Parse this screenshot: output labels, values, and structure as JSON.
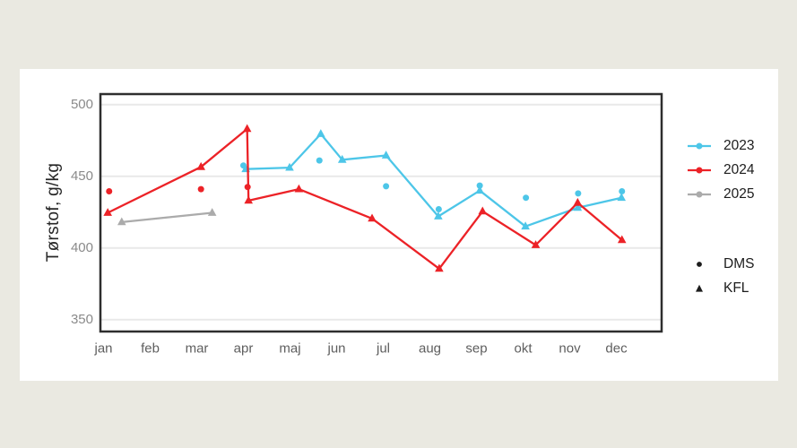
{
  "page": {
    "background_color": "#EAE9E1",
    "card_color": "#FFFFFF"
  },
  "chart_data": {
    "type": "line",
    "title": "",
    "ylabel": "Tørstof, g/kg",
    "ylim": [
      341,
      508
    ],
    "yticks": [
      350,
      400,
      450,
      500
    ],
    "ytick_labels": [
      "350",
      "400",
      "450",
      "500"
    ],
    "x_categories": [
      "jan",
      "feb",
      "mar",
      "apr",
      "maj",
      "jun",
      "jul",
      "aug",
      "sep",
      "okt",
      "nov",
      "dec"
    ],
    "x_unit": "month index, 0 = jan (fractional = within-month date)",
    "grid": "horizontal major gridlines only",
    "legend_position": "right",
    "panel_border": "#2E2E2E",
    "grid_color": "#E9E9E9",
    "series": [
      {
        "name": "2023",
        "color": "#4DC6E8",
        "kfl_points": [
          [
            3.05,
            455
          ],
          [
            3.99,
            456
          ],
          [
            4.66,
            479.5
          ],
          [
            5.12,
            461.5
          ],
          [
            6.06,
            464.5
          ],
          [
            7.18,
            422
          ],
          [
            8.07,
            440
          ],
          [
            9.05,
            415
          ],
          [
            10.17,
            428
          ],
          [
            11.11,
            435
          ]
        ],
        "dms_points": [
          [
            3.0,
            457.5
          ],
          [
            4.63,
            461
          ],
          [
            6.06,
            443
          ],
          [
            7.19,
            427
          ],
          [
            8.07,
            443.5
          ],
          [
            9.06,
            435
          ],
          [
            10.18,
            438
          ],
          [
            11.12,
            439.5
          ]
        ]
      },
      {
        "name": "2024",
        "color": "#EC2227",
        "kfl_points": [
          [
            0.09,
            424.5
          ],
          [
            2.09,
            456.5
          ],
          [
            3.08,
            483
          ],
          [
            3.11,
            433
          ],
          [
            4.19,
            441
          ],
          [
            5.76,
            420.5
          ],
          [
            7.2,
            385.5
          ],
          [
            8.13,
            425.5
          ],
          [
            9.27,
            402
          ],
          [
            10.17,
            431.5
          ],
          [
            11.12,
            405.5
          ]
        ],
        "dms_points": [
          [
            0.12,
            439.5
          ],
          [
            2.09,
            441
          ],
          [
            3.09,
            442.5
          ]
        ]
      },
      {
        "name": "2025",
        "color": "#ABABAB",
        "kfl_points": [
          [
            0.39,
            418
          ],
          [
            2.33,
            424.5
          ]
        ],
        "dms_points": []
      }
    ],
    "shape_legend": [
      {
        "label": "DMS",
        "shape": "circle"
      },
      {
        "label": "KFL",
        "shape": "triangle"
      }
    ]
  }
}
